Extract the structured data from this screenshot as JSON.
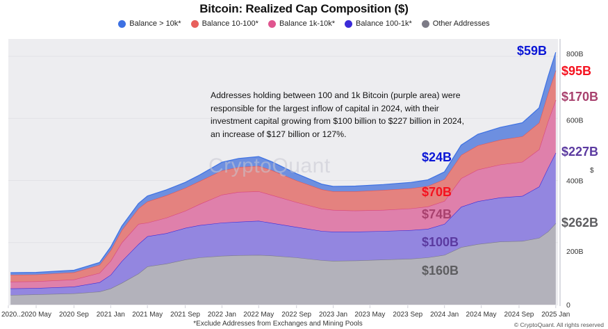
{
  "chart_data": {
    "type": "area",
    "stacked": true,
    "title": "Bitcoin: Realized Cap Composition ($)",
    "xlabel": "",
    "ylabel": "$",
    "ylim": [
      0,
      850
    ],
    "y_unit": "B",
    "y_ticks": [
      {
        "value": 0,
        "label": "0"
      },
      {
        "value": 200,
        "label": "200B"
      },
      {
        "value": 400,
        "label": "400B"
      },
      {
        "value": 600,
        "label": "600B"
      },
      {
        "value": 800,
        "label": "800B"
      }
    ],
    "x_ticks": [
      "2020...",
      "2020 May",
      "2020 Sep",
      "2021 Jan",
      "2021 May",
      "2021 Sep",
      "2022 Jan",
      "2022 May",
      "2022 Sep",
      "2023 Jan",
      "2023 May",
      "2023 Sep",
      "2024 Jan",
      "2024 May",
      "2024 Sep",
      "2025 Jan"
    ],
    "x": [
      2020.1,
      2020.33,
      2020.67,
      2020.9,
      2021.0,
      2021.1,
      2021.25,
      2021.33,
      2021.5,
      2021.67,
      2021.8,
      2022.0,
      2022.15,
      2022.33,
      2022.45,
      2022.67,
      2022.9,
      2023.0,
      2023.2,
      2023.45,
      2023.7,
      2023.85,
      2024.0,
      2024.15,
      2024.3,
      2024.5,
      2024.7,
      2024.85,
      2024.93,
      2025.0
    ],
    "series": [
      {
        "name": "Other Addresses",
        "color": "#7c7b86",
        "values": [
          31,
          33,
          36,
          42,
          52,
          70,
          100,
          123,
          132,
          145,
          152,
          157,
          159,
          160,
          158,
          152,
          143,
          141,
          142,
          145,
          148,
          152,
          160,
          185,
          195,
          203,
          205,
          215,
          235,
          262
        ]
      },
      {
        "name": "Balance 100-1k*",
        "color": "#3b2bd8",
        "values": [
          21,
          20,
          22,
          30,
          44,
          70,
          95,
          97,
          98,
          102,
          104,
          107,
          108,
          110,
          105,
          98,
          94,
          94,
          93,
          92,
          92,
          92,
          100,
          130,
          138,
          142,
          145,
          165,
          205,
          227
        ]
      },
      {
        "name": "Balance 1k-10k*",
        "color": "#e0558f",
        "values": [
          22,
          22,
          23,
          30,
          45,
          60,
          65,
          44,
          50,
          55,
          68,
          90,
          96,
          95,
          90,
          80,
          72,
          70,
          68,
          68,
          70,
          72,
          74,
          92,
          102,
          106,
          110,
          120,
          150,
          170
        ]
      },
      {
        "name": "Balance 10-100*",
        "color": "#e8605c",
        "values": [
          22,
          22,
          23,
          26,
          34,
          40,
          50,
          68,
          72,
          74,
          74,
          78,
          80,
          82,
          80,
          70,
          62,
          60,
          62,
          64,
          65,
          66,
          70,
          75,
          78,
          80,
          82,
          86,
          90,
          95
        ]
      },
      {
        "name": "Balance > 10k*",
        "color": "#3d71e3",
        "values": [
          7,
          7,
          7,
          8,
          11,
          13,
          16,
          18,
          18,
          18,
          20,
          27,
          28,
          30,
          27,
          22,
          17,
          16,
          17,
          18,
          19,
          20,
          24,
          32,
          36,
          40,
          44,
          48,
          54,
          59
        ]
      }
    ],
    "legend": [
      {
        "label": "Balance > 10k*",
        "color": "#3d71e3"
      },
      {
        "label": "Balance 10-100*",
        "color": "#e8605c"
      },
      {
        "label": "Balance 1k-10k*",
        "color": "#e0558f"
      },
      {
        "label": "Balance 100-1k*",
        "color": "#3b2bd8"
      },
      {
        "label": "Other Addresses",
        "color": "#7c7b86"
      }
    ],
    "legend_position": "top-center",
    "annotations": {
      "note": "Addresses holding between 100 and 1k Bitcoin (purple area) were responsible for the largest inflow of capital in 2024, with their investment capital growing from $100 billion to $227 billion in 2024, an increase of $127 billion or 127%.",
      "start_2024": {
        "gt10k": "$24B",
        "b10_100": "$70B",
        "b1k_10k": "$74B",
        "b100_1k": "$100B",
        "other": "$160B"
      },
      "end_2024": {
        "gt10k": "$59B",
        "b10_100": "$95B",
        "b1k_10k": "$170B",
        "b100_1k": "$227B",
        "other": "$262B"
      }
    },
    "grid": true
  },
  "footer": {
    "footnote": "*Exclude Addresses from Exchanges and Mining Pools",
    "copyright": "© CryptoQuant. All rights reserved",
    "watermark": "CryptoQuant"
  },
  "ui": {
    "unit_icon": "dollar-unit-icon",
    "unit_symbol": "$"
  }
}
